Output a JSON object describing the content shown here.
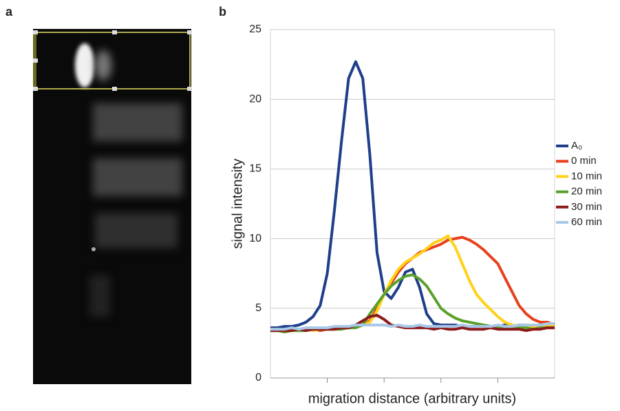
{
  "panel_labels": [
    "a",
    "b"
  ],
  "chart_data": {
    "type": "line",
    "ylabel": "signal intensity",
    "xlabel": "migration distance (arbitrary units)",
    "x": [
      0,
      2.5,
      5,
      7.5,
      10,
      12.5,
      15,
      17.5,
      20,
      22.5,
      25,
      27.5,
      30,
      32.5,
      35,
      37.5,
      40,
      42.5,
      45,
      47.5,
      50,
      52.5,
      55,
      57.5,
      60,
      62.5,
      65,
      67.5,
      70,
      72.5,
      75,
      77.5,
      80,
      82.5,
      85,
      87.5,
      90,
      92.5,
      95,
      97.5,
      100
    ],
    "xlim": [
      0,
      100
    ],
    "xticks": [
      20,
      40,
      60,
      80
    ],
    "ylim": [
      0,
      25
    ],
    "yticks": [
      0,
      5,
      10,
      15,
      20,
      25
    ],
    "grid": true,
    "legend": "right",
    "series": [
      {
        "name": "A₀",
        "color": "#1f3f8a",
        "values": [
          3.6,
          3.6,
          3.7,
          3.7,
          3.8,
          4.0,
          4.4,
          5.2,
          7.5,
          12,
          17,
          21.5,
          22.7,
          21.5,
          16,
          9,
          6.2,
          5.7,
          6.5,
          7.6,
          7.8,
          6.5,
          4.6,
          3.9,
          3.8,
          3.8,
          3.8,
          3.7,
          3.7,
          3.7,
          3.8,
          3.7,
          3.7,
          3.8,
          3.7,
          3.8,
          3.8,
          3.7,
          3.8,
          3.8,
          3.9
        ]
      },
      {
        "name": "0 min",
        "color": "#e8401c",
        "values": [
          3.5,
          3.5,
          3.4,
          3.5,
          3.4,
          3.5,
          3.5,
          3.4,
          3.5,
          3.5,
          3.6,
          3.6,
          3.7,
          3.8,
          4.1,
          5.0,
          6.0,
          6.8,
          7.6,
          8.2,
          8.6,
          9.0,
          9.2,
          9.4,
          9.6,
          9.9,
          10.0,
          10.1,
          9.9,
          9.6,
          9.2,
          8.7,
          8.2,
          7.2,
          6.2,
          5.2,
          4.6,
          4.2,
          4.0,
          4.0,
          3.8
        ]
      },
      {
        "name": "10 min",
        "color": "#ffd21a",
        "values": [
          3.4,
          3.4,
          3.3,
          3.4,
          3.4,
          3.5,
          3.4,
          3.5,
          3.5,
          3.5,
          3.6,
          3.6,
          3.7,
          3.8,
          4.0,
          4.8,
          6.0,
          7.0,
          7.8,
          8.3,
          8.6,
          8.9,
          9.3,
          9.7,
          9.9,
          10.2,
          9.4,
          8.2,
          7.0,
          6.0,
          5.4,
          4.9,
          4.4,
          4.0,
          3.8,
          3.7,
          3.7,
          3.7,
          3.7,
          3.8,
          3.8
        ]
      },
      {
        "name": "20 min",
        "color": "#5aa02c",
        "values": [
          3.4,
          3.4,
          3.3,
          3.4,
          3.4,
          3.4,
          3.5,
          3.5,
          3.5,
          3.5,
          3.5,
          3.6,
          3.6,
          3.8,
          4.6,
          5.3,
          6.0,
          6.6,
          7.0,
          7.3,
          7.4,
          7.1,
          6.6,
          5.8,
          5.0,
          4.6,
          4.3,
          4.1,
          4.0,
          3.9,
          3.8,
          3.7,
          3.7,
          3.6,
          3.6,
          3.6,
          3.6,
          3.5,
          3.6,
          3.6,
          3.6
        ]
      },
      {
        "name": "30 min",
        "color": "#8b1a1a",
        "values": [
          3.4,
          3.4,
          3.4,
          3.4,
          3.5,
          3.4,
          3.5,
          3.5,
          3.5,
          3.5,
          3.6,
          3.6,
          3.8,
          4.1,
          4.4,
          4.5,
          4.2,
          3.8,
          3.7,
          3.6,
          3.6,
          3.6,
          3.6,
          3.5,
          3.6,
          3.5,
          3.5,
          3.6,
          3.5,
          3.5,
          3.5,
          3.6,
          3.5,
          3.5,
          3.5,
          3.5,
          3.4,
          3.5,
          3.5,
          3.6,
          3.6
        ]
      },
      {
        "name": "60 min",
        "color": "#a8c8e8",
        "values": [
          3.5,
          3.5,
          3.5,
          3.6,
          3.5,
          3.6,
          3.6,
          3.6,
          3.6,
          3.7,
          3.7,
          3.7,
          3.8,
          3.8,
          3.8,
          3.8,
          3.8,
          3.7,
          3.8,
          3.7,
          3.7,
          3.8,
          3.7,
          3.7,
          3.7,
          3.7,
          3.7,
          3.8,
          3.7,
          3.7,
          3.7,
          3.7,
          3.8,
          3.7,
          3.7,
          3.8,
          3.8,
          3.8,
          3.8,
          3.9,
          3.9
        ]
      }
    ]
  }
}
